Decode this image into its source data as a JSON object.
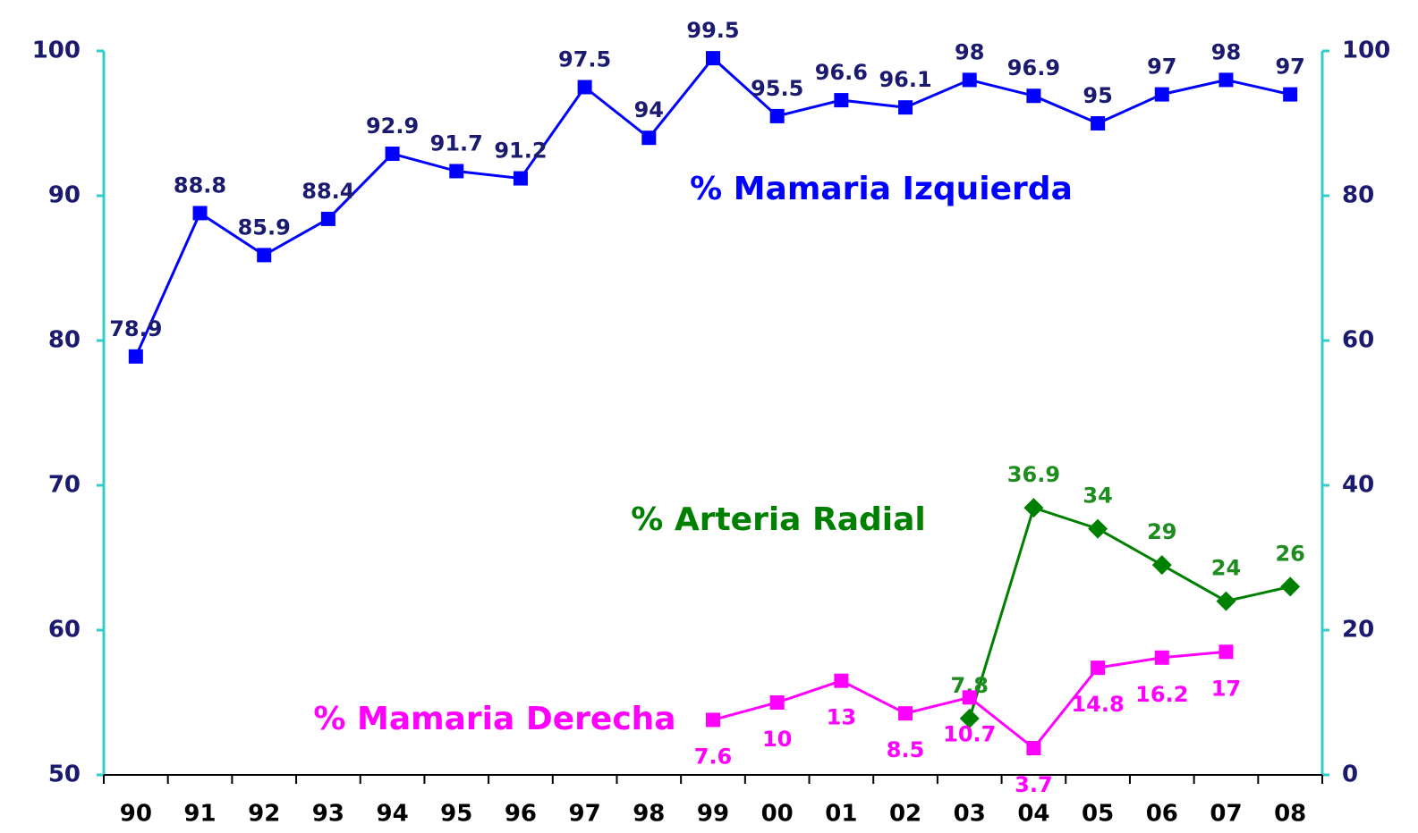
{
  "chart_data": {
    "type": "line",
    "categories": [
      "90",
      "91",
      "92",
      "93",
      "94",
      "95",
      "96",
      "97",
      "98",
      "99",
      "00",
      "01",
      "02",
      "03",
      "04",
      "05",
      "06",
      "07",
      "08"
    ],
    "series": [
      {
        "name": "% Mamaria Izquierda",
        "color": "#0000ff",
        "label_color": "#1a1a6e",
        "marker": "square",
        "values": [
          78.9,
          88.8,
          85.9,
          88.4,
          92.9,
          91.7,
          91.2,
          97.5,
          94,
          99.5,
          95.5,
          96.6,
          96.1,
          98,
          96.9,
          95,
          97,
          98,
          97
        ]
      },
      {
        "name": "% Arteria Radial",
        "color": "#008000",
        "label_color": "#1e8c1e",
        "marker": "diamond",
        "axis": "y2",
        "values": [
          null,
          null,
          null,
          null,
          null,
          null,
          null,
          null,
          null,
          null,
          null,
          null,
          null,
          7.8,
          36.9,
          34,
          29,
          24,
          26
        ]
      },
      {
        "name": "% Mamaria Derecha",
        "color": "#ff00ff",
        "label_color": "#ff00ff",
        "marker": "square",
        "axis": "y2",
        "values": [
          null,
          null,
          null,
          null,
          null,
          null,
          null,
          null,
          null,
          7.6,
          10,
          13,
          8.5,
          10.7,
          3.7,
          14.8,
          16.2,
          17,
          null
        ]
      }
    ],
    "ylim": [
      50,
      100
    ],
    "yticks": [
      50,
      60,
      70,
      80,
      90,
      100
    ],
    "y2lim": [
      0,
      100
    ],
    "y2ticks": [
      0,
      20,
      40,
      60,
      80,
      100
    ],
    "axis_color": "#33cccc",
    "grid": false
  }
}
